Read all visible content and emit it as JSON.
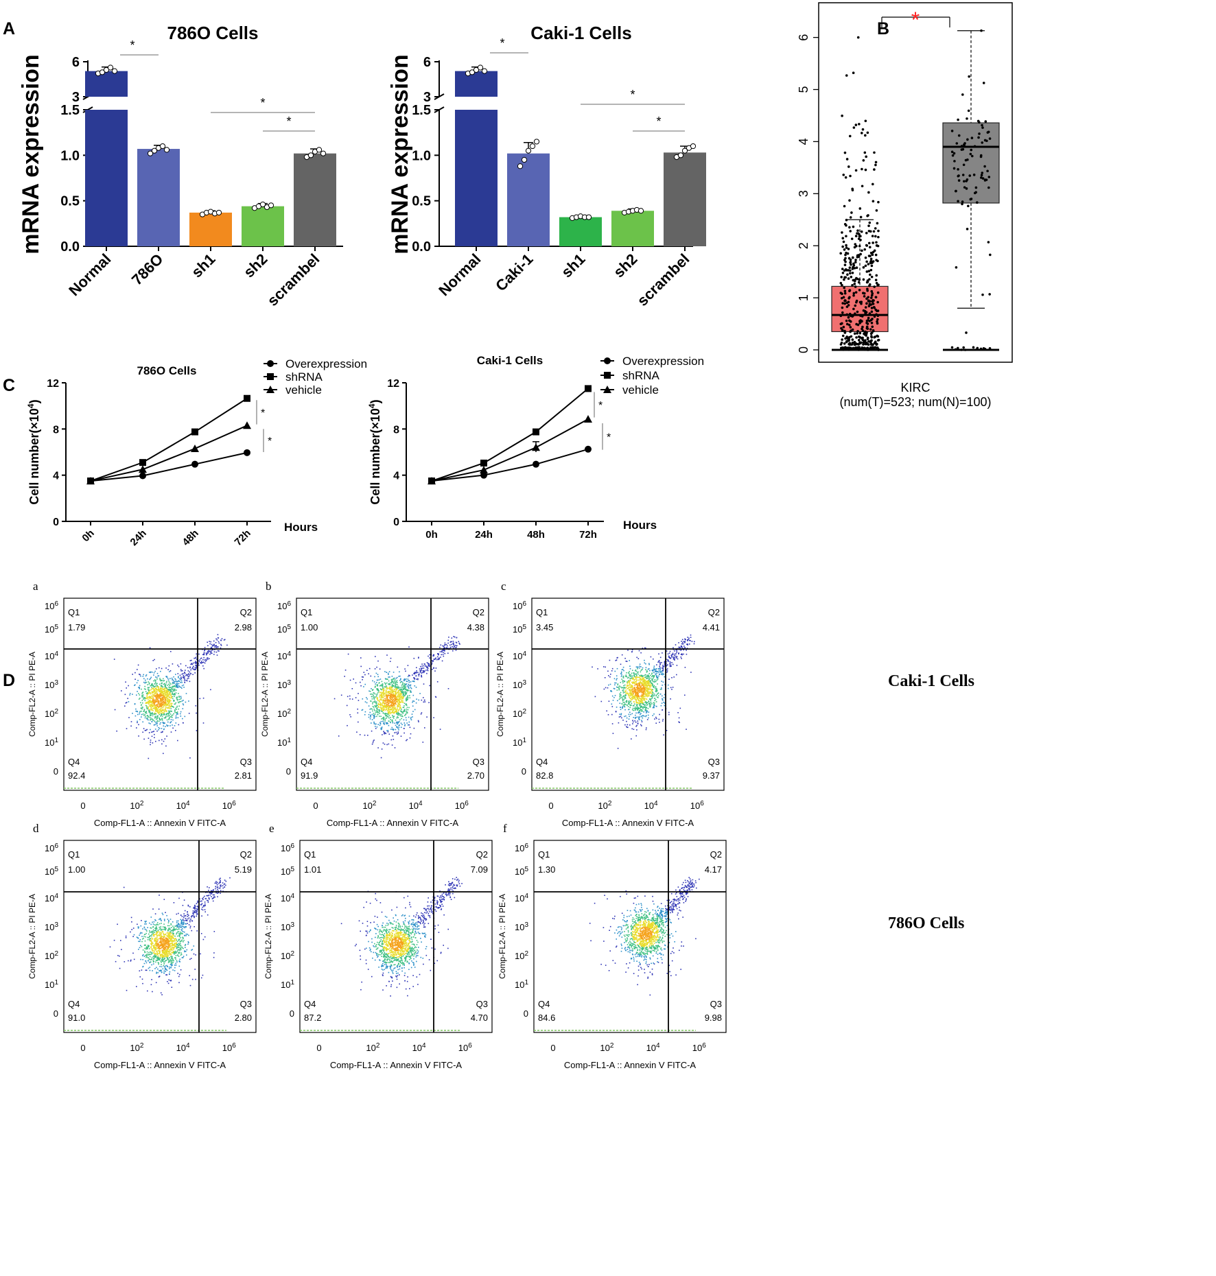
{
  "panel_labels": {
    "a": "A",
    "b": "B",
    "c": "C",
    "d": "D"
  },
  "chart_data": [
    {
      "id": "A1",
      "type": "bar",
      "title": "786O Cells",
      "xlabel": "",
      "ylabel": "mRNA expression",
      "categories": [
        "Normal",
        "786O",
        "sh1",
        "sh2",
        "scrambel"
      ],
      "values": [
        5.2,
        1.07,
        0.37,
        0.44,
        1.02
      ],
      "errors": [
        0.35,
        0.04,
        0.02,
        0.03,
        0.05
      ],
      "points": [
        [
          5.0,
          5.1,
          5.3,
          5.5,
          5.2
        ],
        [
          1.02,
          1.05,
          1.08,
          1.1,
          1.06
        ],
        [
          0.35,
          0.37,
          0.38,
          0.36,
          0.37
        ],
        [
          0.42,
          0.44,
          0.46,
          0.43,
          0.45
        ],
        [
          0.98,
          1.0,
          1.04,
          1.06,
          1.02
        ]
      ],
      "colors": [
        "#2b3a94",
        "#5865b3",
        "#f28a1e",
        "#6cc24a",
        "#646464"
      ],
      "y_ticks_upper": [
        "3",
        "6"
      ],
      "y_ticks_lower": [
        "0.0",
        "0.5",
        "1.0",
        "1.5"
      ],
      "axis_break": [
        1.5,
        3
      ],
      "ylim": [
        0,
        6
      ],
      "significance": [
        {
          "from": 0,
          "to": 1,
          "label": "*"
        },
        {
          "from": 2,
          "to": 4,
          "label": "*"
        },
        {
          "from": 3,
          "to": 4,
          "label": "*"
        }
      ]
    },
    {
      "id": "A2",
      "type": "bar",
      "title": "Caki-1 Cells",
      "xlabel": "",
      "ylabel": "mRNA expression",
      "categories": [
        "Normal",
        "Caki-1",
        "sh1",
        "sh2",
        "scrambel"
      ],
      "values": [
        5.2,
        1.02,
        0.32,
        0.39,
        1.03
      ],
      "errors": [
        0.35,
        0.12,
        0.01,
        0.02,
        0.07
      ],
      "points": [
        [
          5.0,
          5.1,
          5.3,
          5.5,
          5.2
        ],
        [
          0.88,
          0.95,
          1.05,
          1.1,
          1.15
        ],
        [
          0.31,
          0.32,
          0.33,
          0.32,
          0.32
        ],
        [
          0.37,
          0.38,
          0.39,
          0.4,
          0.39
        ],
        [
          0.98,
          1.0,
          1.05,
          1.08,
          1.1
        ]
      ],
      "colors": [
        "#2b3a94",
        "#5865b3",
        "#2db34a",
        "#6cc24a",
        "#646464"
      ],
      "y_ticks_upper": [
        "3",
        "6"
      ],
      "y_ticks_lower": [
        "0.0",
        "0.5",
        "1.0",
        "1.5"
      ],
      "axis_break": [
        1.5,
        3
      ],
      "ylim": [
        0,
        6
      ],
      "significance": [
        {
          "from": 0,
          "to": 1,
          "label": "*"
        },
        {
          "from": 2,
          "to": 4,
          "label": "*"
        },
        {
          "from": 3,
          "to": 4,
          "label": "*"
        }
      ]
    },
    {
      "id": "B",
      "type": "box",
      "title": "",
      "xlabel": "KIRC",
      "xlabel2": "(num(T)=523; num(N)=100)",
      "ylim": [
        0,
        6.5
      ],
      "y_ticks": [
        "0",
        "1",
        "2",
        "3",
        "4",
        "5",
        "6"
      ],
      "series": [
        {
          "name": "T",
          "n": 523,
          "q1": 0.35,
          "median": 0.67,
          "q3": 1.22,
          "whisker_low": 0,
          "whisker_high": 2.5,
          "color": "#f07070"
        },
        {
          "name": "N",
          "n": 100,
          "q1": 2.82,
          "median": 3.9,
          "q3": 4.36,
          "whisker_low": 0.8,
          "whisker_high": 6.13,
          "color": "#858585"
        }
      ],
      "significance": "*",
      "significance_color": "#ff2020"
    },
    {
      "id": "C1",
      "type": "line",
      "title": "786O Cells",
      "xlabel": "Hours",
      "ylabel_prefix": "Cell number(×10",
      "ylabel_exp": "4",
      "ylabel_suffix": ")",
      "x": [
        "0h",
        "24h",
        "48h",
        "72h"
      ],
      "ylim": [
        0,
        12
      ],
      "y_ticks": [
        "0",
        "4",
        "8",
        "12"
      ],
      "series": [
        {
          "name": "Overexpression",
          "marker": "circle",
          "values": [
            3.5,
            3.95,
            4.95,
            5.95
          ]
        },
        {
          "name": "shRNA",
          "marker": "square",
          "values": [
            3.5,
            5.1,
            7.75,
            10.65
          ]
        },
        {
          "name": "vehicle",
          "marker": "triangle",
          "values": [
            3.5,
            4.5,
            6.3,
            8.3
          ]
        }
      ],
      "significance": [
        "*",
        "*"
      ]
    },
    {
      "id": "C2",
      "type": "line",
      "title": "Caki-1 Cells",
      "xlabel": "Hours",
      "ylabel_prefix": "Cell number(×10",
      "ylabel_exp": "4",
      "ylabel_suffix": ")",
      "x": [
        "0h",
        "24h",
        "48h",
        "72h"
      ],
      "ylim": [
        0,
        12
      ],
      "y_ticks": [
        "0",
        "4",
        "8",
        "12"
      ],
      "series": [
        {
          "name": "Overexpression",
          "marker": "circle",
          "values": [
            3.5,
            4.0,
            4.95,
            6.25
          ]
        },
        {
          "name": "shRNA",
          "marker": "square",
          "values": [
            3.5,
            5.05,
            7.75,
            11.5
          ]
        },
        {
          "name": "vehicle",
          "marker": "triangle",
          "values": [
            3.5,
            4.45,
            6.4,
            8.85
          ]
        }
      ],
      "significance": [
        "*",
        "*"
      ]
    },
    {
      "id": "D",
      "type": "scatter",
      "subtype": "flow-cytometry",
      "xlabel": "Comp-FL1-A :: Annexin V FITC-A",
      "ylabel": "Comp-FL2-A :: PI PE-A",
      "x_ticks": [
        "0",
        "10",
        "10",
        "10"
      ],
      "x_tick_exps": [
        "",
        "2",
        "4",
        "6"
      ],
      "y_ticks": [
        "0",
        "10",
        "10",
        "10",
        "10",
        "10",
        "10"
      ],
      "y_tick_exps": [
        "",
        "1",
        "2",
        "3",
        "4",
        "5",
        "6"
      ],
      "quadrant_names": [
        "Q1",
        "Q2",
        "Q3",
        "Q4"
      ],
      "row_labels": [
        "Caki-1 Cells",
        "786O Cells"
      ],
      "plots": [
        {
          "label": "a",
          "q1": "1.79",
          "q2": "2.98",
          "q3": "2.81",
          "q4": "92.4"
        },
        {
          "label": "b",
          "q1": "1.00",
          "q2": "4.38",
          "q3": "2.70",
          "q4": "91.9"
        },
        {
          "label": "c",
          "q1": "3.45",
          "q2": "4.41",
          "q3": "9.37",
          "q4": "82.8"
        },
        {
          "label": "d",
          "q1": "1.00",
          "q2": "5.19",
          "q3": "2.80",
          "q4": "91.0"
        },
        {
          "label": "e",
          "q1": "1.01",
          "q2": "7.09",
          "q3": "4.70",
          "q4": "87.2"
        },
        {
          "label": "f",
          "q1": "1.30",
          "q2": "4.17",
          "q3": "9.98",
          "q4": "84.6"
        }
      ]
    }
  ]
}
